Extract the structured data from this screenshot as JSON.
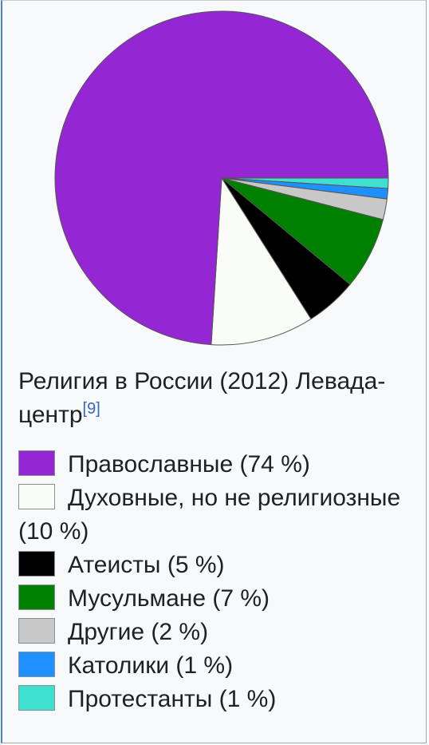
{
  "chart_data": {
    "type": "pie",
    "title": "Религия в России (2012) Левада-центр",
    "citation": "[9]",
    "slices": [
      {
        "label": "Православные",
        "value": 74,
        "label_text": "Православные (74 %)",
        "color": "#9526d4"
      },
      {
        "label": "Духовные, но не религиозные",
        "value": 10,
        "label_text": "Духовные, но не религиозные (10 %)",
        "color": "#fafcf7"
      },
      {
        "label": "Атеисты",
        "value": 5,
        "label_text": "Атеисты (5 %)",
        "color": "#000000"
      },
      {
        "label": "Мусульмане",
        "value": 7,
        "label_text": "Мусульмане (7 %)",
        "color": "#008000"
      },
      {
        "label": "Другие",
        "value": 2,
        "label_text": "Другие (2 %)",
        "color": "#c8c8c8"
      },
      {
        "label": "Католики",
        "value": 1,
        "label_text": "Католики (1 %)",
        "color": "#1e90ff"
      },
      {
        "label": "Протестанты",
        "value": 1,
        "label_text": "Протестанты (1 %)",
        "color": "#40e0d0"
      }
    ]
  }
}
